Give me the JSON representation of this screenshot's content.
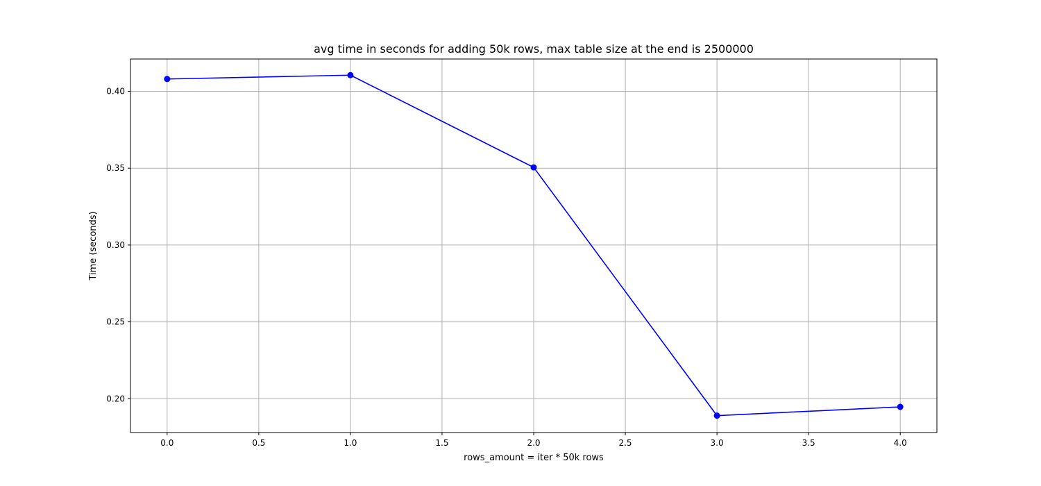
{
  "chart_data": {
    "type": "line",
    "title": "avg time in seconds for adding 50k rows, max table size at the end is 2500000",
    "xlabel": "rows_amount = iter * 50k rows",
    "ylabel": "Time (seconds)",
    "x": [
      0,
      1,
      2,
      3,
      4
    ],
    "series": [
      {
        "values": [
          0.408,
          0.4105,
          0.3505,
          0.189,
          0.1947
        ],
        "color": "#0000ff",
        "marker": "circle"
      }
    ],
    "xlim": [
      -0.2,
      4.2
    ],
    "ylim": [
      0.178,
      0.421
    ],
    "xticks": [
      0.0,
      0.5,
      1.0,
      1.5,
      2.0,
      2.5,
      3.0,
      3.5,
      4.0
    ],
    "xtick_labels": [
      "0.0",
      "0.5",
      "1.0",
      "1.5",
      "2.0",
      "2.5",
      "3.0",
      "3.5",
      "4.0"
    ],
    "yticks": [
      0.2,
      0.25,
      0.3,
      0.35,
      0.4
    ],
    "ytick_labels": [
      "0.20",
      "0.25",
      "0.30",
      "0.35",
      "0.40"
    ],
    "grid": true
  }
}
